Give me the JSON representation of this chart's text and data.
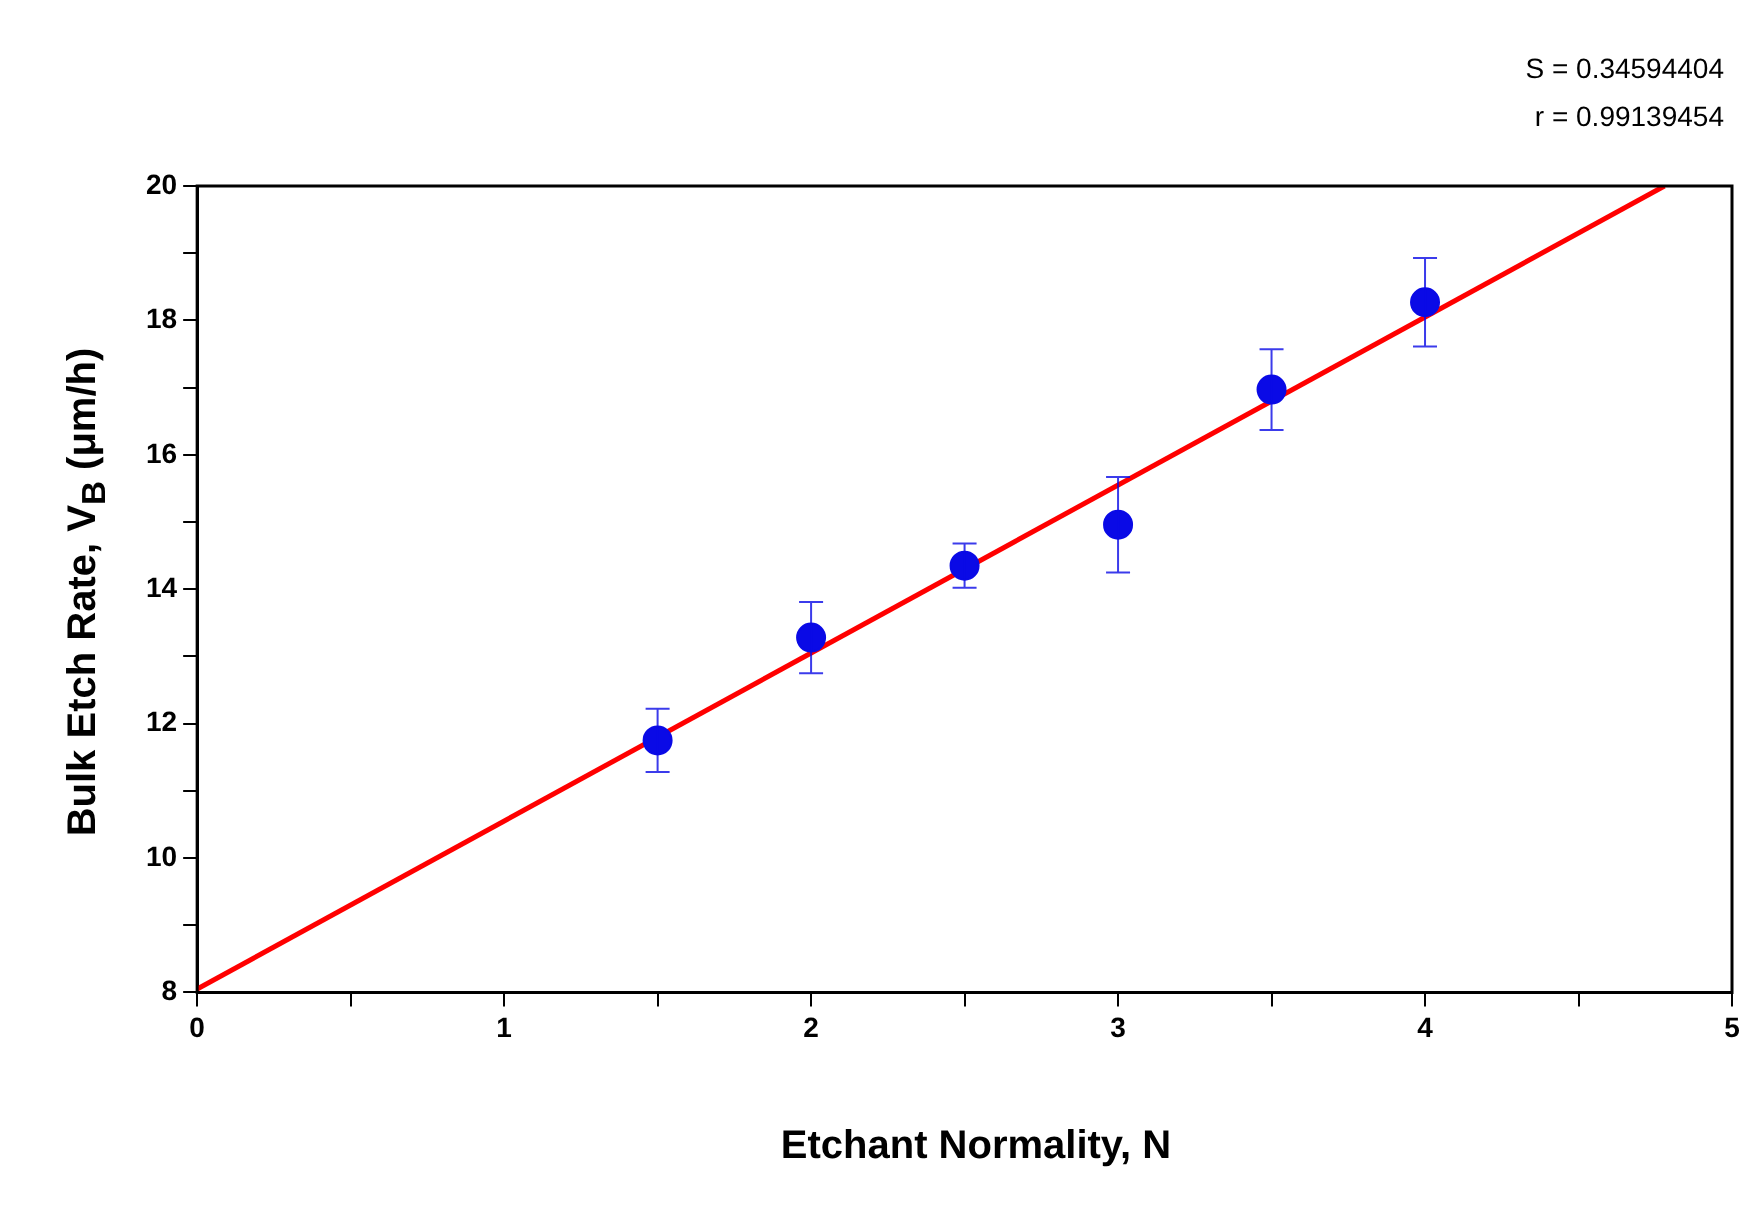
{
  "chart_data": {
    "type": "scatter",
    "xlabel": "Etchant Normality, N",
    "ylabel": "Bulk Etch Rate, V$_{B}$ (μm/h)",
    "annotations": [
      "S = 0.34594404",
      "r = 0.99139454"
    ],
    "xlim": [
      0,
      5
    ],
    "xticks": [
      0,
      {
        "value": 0.5,
        "label": null
      },
      1,
      {
        "value": 1.5,
        "label": null
      },
      2,
      {
        "value": 2.5,
        "label": null
      },
      3,
      {
        "value": 3.5,
        "label": null
      },
      4,
      {
        "value": 4.5,
        "label": null
      },
      5
    ],
    "ylim": [
      8,
      20
    ],
    "yticks": [
      8,
      {
        "value": 9,
        "label": null
      },
      10,
      {
        "value": 11,
        "label": null
      },
      12,
      {
        "value": 13,
        "label": null
      },
      14,
      {
        "value": 15,
        "label": null
      },
      16,
      {
        "value": 17,
        "label": null
      },
      18,
      {
        "value": 19,
        "label": null
      },
      20
    ],
    "grid": false,
    "legend": false,
    "marker": "circle",
    "series": [
      {
        "color": "#0a0ae6",
        "x": [
          1.5,
          2,
          2.5,
          3,
          3.5,
          4
        ],
        "values": [
          11.75,
          13.28,
          14.35,
          14.96,
          16.97,
          18.27
        ],
        "errors": [
          0.47,
          0.53,
          0.33,
          0.71,
          0.6,
          0.66
        ]
      },
      {
        "type": "line",
        "color": "#ff0000",
        "x": [
          0,
          4.78
        ],
        "values": [
          8.05,
          20
        ],
        "marker": "none",
        "line_style": "solid"
      }
    ]
  }
}
